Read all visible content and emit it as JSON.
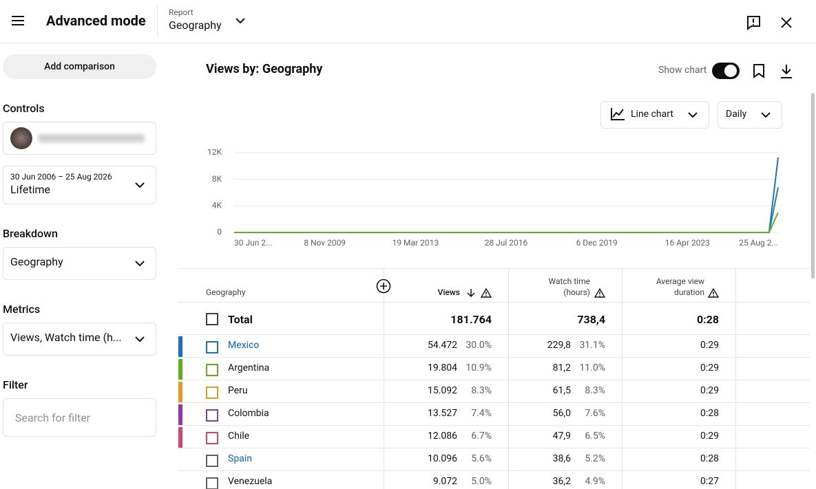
{
  "header": {
    "title": "Advanced mode",
    "report_label": "Report",
    "report": "Geography"
  },
  "sidebar": {
    "add_comparison": "Add comparison",
    "controls": "Controls",
    "date_range": "30 Jun 2006 – 25 Aug 2026",
    "period": "Lifetime",
    "breakdown": "Breakdown",
    "breakdown_value": "Geography",
    "metrics": "Metrics",
    "metrics_value": "Views, Watch time (h...",
    "filter": "Filter",
    "filter_placeholder": "Search for filter"
  },
  "report": {
    "title": "Views by: Geography",
    "show_chart": "Show chart",
    "chart_type": "Line chart",
    "interval": "Daily"
  },
  "chart_data": {
    "type": "line",
    "categories": [
      "30 Jun 2...",
      null,
      null,
      null,
      null,
      null,
      null,
      null,
      null,
      null,
      "8 Nov 2009",
      null,
      null,
      null,
      null,
      null,
      null,
      null,
      null,
      null,
      "19 Mar 2013",
      null,
      null,
      null,
      null,
      null,
      null,
      null,
      null,
      null,
      "28 Jul 2016",
      null,
      null,
      null,
      null,
      null,
      null,
      null,
      null,
      null,
      "6 Dec 2019",
      null,
      null,
      null,
      null,
      null,
      null,
      null,
      null,
      null,
      "16 Apr 2023",
      null,
      null,
      null,
      null,
      null,
      null,
      null,
      null,
      null,
      "25 Aug 2..."
    ],
    "series": [
      {
        "color": "#1a6fc9",
        "values": [
          0,
          0,
          0,
          0,
          0,
          0,
          0,
          0,
          0,
          0,
          0,
          0,
          0,
          0,
          0,
          0,
          0,
          0,
          0,
          0,
          0,
          0,
          0,
          0,
          0,
          0,
          0,
          0,
          0,
          0,
          0,
          0,
          0,
          0,
          0,
          0,
          0,
          0,
          0,
          0,
          0,
          0,
          0,
          0,
          0,
          0,
          0,
          0,
          0,
          0,
          0,
          0,
          0,
          0,
          0,
          0,
          0,
          0,
          0,
          0,
          11300
        ]
      },
      {
        "color": "#1f8a8a",
        "values": [
          0,
          0,
          0,
          0,
          0,
          0,
          0,
          0,
          0,
          0,
          0,
          0,
          0,
          0,
          0,
          0,
          0,
          0,
          0,
          0,
          0,
          0,
          0,
          0,
          0,
          0,
          0,
          0,
          0,
          0,
          0,
          0,
          0,
          0,
          0,
          0,
          0,
          0,
          0,
          0,
          0,
          0,
          0,
          0,
          0,
          0,
          0,
          0,
          0,
          0,
          0,
          0,
          0,
          0,
          0,
          0,
          0,
          0,
          0,
          0,
          6800
        ]
      },
      {
        "color": "#5cb318",
        "values": [
          0,
          0,
          0,
          0,
          0,
          0,
          0,
          0,
          0,
          0,
          0,
          0,
          0,
          0,
          0,
          0,
          0,
          0,
          0,
          0,
          0,
          0,
          0,
          0,
          0,
          0,
          0,
          0,
          0,
          0,
          0,
          0,
          0,
          0,
          0,
          0,
          0,
          0,
          0,
          0,
          0,
          0,
          0,
          0,
          0,
          0,
          0,
          0,
          0,
          0,
          0,
          0,
          0,
          0,
          0,
          0,
          0,
          0,
          0,
          0,
          3000
        ]
      }
    ],
    "ylim": [
      0,
      12000
    ],
    "yticks": [
      0,
      {
        "value": 4000,
        "label": "4K"
      },
      {
        "value": 8000,
        "label": "8K"
      },
      {
        "value": 12000,
        "label": "12K"
      }
    ],
    "grid": true
  },
  "table": {
    "columns": [
      "Geography",
      "Views",
      "Watch time (hours)",
      "Average view duration"
    ],
    "total": {
      "label": "Total",
      "views": "181.764",
      "watch_time": "738,4",
      "avg_duration": "0:28"
    },
    "rows": [
      {
        "name": "Mexico",
        "color": "#1a6fc9",
        "link": true,
        "views": "54.472",
        "views_share": "30.0%",
        "watch_time": "229,8",
        "watch_share": "31.1%",
        "avg_duration": "0:29"
      },
      {
        "name": "Argentina",
        "color": "#5cb318",
        "link": false,
        "views": "19.804",
        "views_share": "10.9%",
        "watch_time": "81,2",
        "watch_share": "11.0%",
        "avg_duration": "0:29"
      },
      {
        "name": "Peru",
        "color": "#e59a1c",
        "link": false,
        "views": "15.092",
        "views_share": "8.3%",
        "watch_time": "61,5",
        "watch_share": "8.3%",
        "avg_duration": "0:29"
      },
      {
        "name": "Colombia",
        "color": "#8e35b8",
        "link": false,
        "views": "13.527",
        "views_share": "7.4%",
        "watch_time": "56,0",
        "watch_share": "7.6%",
        "avg_duration": "0:28"
      },
      {
        "name": "Chile",
        "color": "#d8436c",
        "link": false,
        "views": "12.086",
        "views_share": "6.7%",
        "watch_time": "47,9",
        "watch_share": "6.5%",
        "avg_duration": "0:29"
      },
      {
        "name": "Spain",
        "color": "#606060",
        "link": true,
        "views": "10.096",
        "views_share": "5.6%",
        "watch_time": "38,6",
        "watch_share": "5.2%",
        "avg_duration": "0:28"
      },
      {
        "name": "Venezuela",
        "color": "#606060",
        "link": false,
        "views": "9.072",
        "views_share": "5.0%",
        "watch_time": "36,2",
        "watch_share": "4.9%",
        "avg_duration": "0:27"
      }
    ]
  }
}
